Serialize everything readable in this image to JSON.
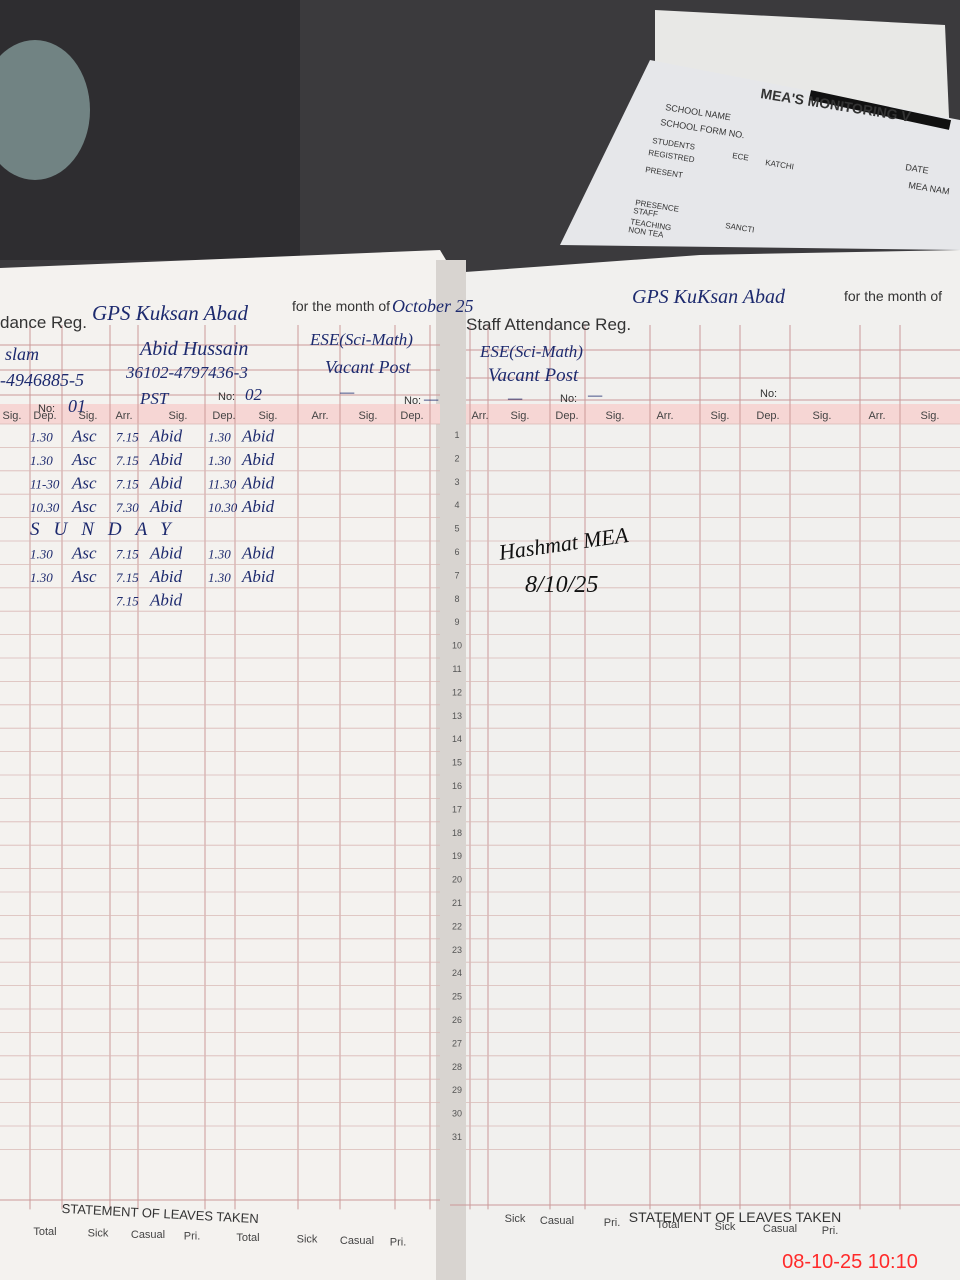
{
  "monitoring_form": {
    "title": "MEA'S MONITORING V",
    "school_name_label": "SCHOOL NAME",
    "date_label": "DATE",
    "school_form_label": "SCHOOL FORM NO.",
    "mea_name_label": "MEA NAM",
    "students_label": "STUDENTS",
    "registred_label": "REGISTRED",
    "present_label": "PRESENT",
    "ece_label": "ECE",
    "katchi_label": "KATCHI",
    "presence_label": "PRESENCE",
    "staff_label": "STAFF",
    "teaching_label": "TEACHING",
    "non_teaching_label": "NON TEA",
    "sanction_label": "SANCTI"
  },
  "left_page": {
    "title": "dance Reg.",
    "school": "GPS Kuksan Abad",
    "month_label": "for the month of",
    "month": "October 25",
    "staff": [
      {
        "name": "slam",
        "cnic": "-4946885-5",
        "no_label": "No:",
        "no": "01"
      },
      {
        "name": "Abid Hussain",
        "cnic": "36102-4797436-3",
        "post": "PST",
        "no_label": "No:",
        "no": "02"
      },
      {
        "name": "ESE(Sci-Math)",
        "cnic": "Vacant Post",
        "post": "—",
        "no_label": "No:",
        "no": "—"
      }
    ],
    "column_headers": [
      "Sig.",
      "Dep.",
      "Sig.",
      "Arr.",
      "Sig.",
      "Dep.",
      "Sig.",
      "Arr.",
      "Sig.",
      "Dep."
    ],
    "rows": [
      {
        "dep1": "1.30",
        "sig1": "Asc",
        "arr": "7.15",
        "sig2": "Abid",
        "dep2": "1.30",
        "sig3": "Abid"
      },
      {
        "dep1": "1.30",
        "sig1": "Asc",
        "arr": "7.15",
        "sig2": "Abid",
        "dep2": "1.30",
        "sig3": "Abid"
      },
      {
        "dep1": "11-30",
        "sig1": "Asc",
        "arr": "7.15",
        "sig2": "Abid",
        "dep2": "11.30",
        "sig3": "Abid"
      },
      {
        "dep1": "10.30",
        "sig1": "Asc",
        "arr": "7.30",
        "sig2": "Abid",
        "dep2": "10.30",
        "sig3": "Abid"
      },
      {
        "note": "SUNDAY"
      },
      {
        "dep1": "1.30",
        "sig1": "Asc",
        "arr": "7.15",
        "sig2": "Abid",
        "dep2": "1.30",
        "sig3": "Abid"
      },
      {
        "dep1": "1.30",
        "sig1": "Asc",
        "arr": "7.15",
        "sig2": "Abid",
        "dep2": "1.30",
        "sig3": "Abid"
      },
      {
        "arr": "7.15",
        "sig2": "Abid"
      }
    ],
    "leaves_title": "STATEMENT OF LEAVES TAKEN",
    "leaves_headers": [
      "Total",
      "Sick",
      "Casual",
      "Pri.",
      "Total",
      "Sick",
      "Casual",
      "Pri."
    ]
  },
  "right_page": {
    "title": "Staff Attendance Reg.",
    "school": "GPS KuKsan Abad",
    "month_label": "for the month of",
    "staff": [
      {
        "name": "ESE(Sci-Math)",
        "cnic": "Vacant Post",
        "post": "—",
        "no_label": "No:",
        "no": "—"
      },
      {
        "no_label": "No:"
      }
    ],
    "column_headers": [
      "Arr.",
      "Sig.",
      "Dep.",
      "Sig.",
      "Arr.",
      "Sig.",
      "Dep.",
      "Sig.",
      "Arr.",
      "Sig."
    ],
    "signature": "Hashmat MEA",
    "signature_date": "8/10/25",
    "leaves_title": "STATEMENT OF LEAVES TAKEN",
    "leaves_headers": [
      "Sick",
      "Casual",
      "Pri.",
      "Total",
      "Sick",
      "Casual",
      "Pri."
    ]
  },
  "day_numbers": [
    "1",
    "2",
    "3",
    "4",
    "5",
    "6",
    "7",
    "8",
    "9",
    "10",
    "11",
    "12",
    "13",
    "14",
    "15",
    "16",
    "17",
    "18",
    "19",
    "20",
    "21",
    "22",
    "23",
    "24",
    "25",
    "26",
    "27",
    "28",
    "29",
    "30",
    "31"
  ],
  "timestamp": "08-10-25  10:10"
}
